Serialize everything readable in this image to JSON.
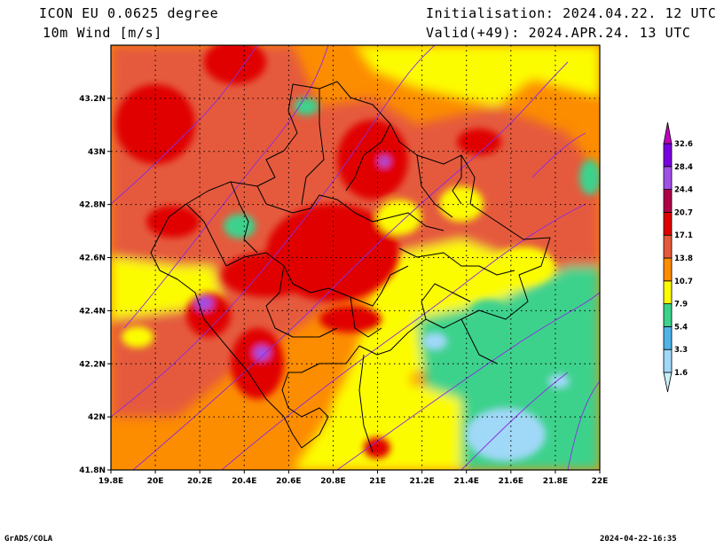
{
  "header": {
    "model": "ICON EU 0.0625 degree",
    "variable": "10m Wind [m/s]",
    "init": "Initialisation: 2024.04.22. 12 UTC",
    "valid": "Valid(+49): 2024.APR.24. 13 UTC"
  },
  "footer": {
    "left": "GrADS/COLA",
    "right": "2024-04-22-16:35"
  },
  "map": {
    "lon_labels": [
      "19.8E",
      "20E",
      "20.2E",
      "20.4E",
      "20.6E",
      "20.8E",
      "21E",
      "21.2E",
      "21.4E",
      "21.6E",
      "21.8E",
      "22E"
    ],
    "lat_labels": [
      "41.8N",
      "42N",
      "42.2N",
      "42.4N",
      "42.6N",
      "42.8N",
      "43N",
      "43.2N"
    ],
    "lon_range": [
      19.8,
      22.0
    ],
    "lat_range": [
      41.8,
      43.4
    ],
    "grid": true
  },
  "colorbar": {
    "levels": [
      "1.6",
      "3.3",
      "5.4",
      "7.9",
      "10.7",
      "13.8",
      "17.1",
      "20.7",
      "24.4",
      "28.4",
      "32.6"
    ],
    "colors": [
      "#c8f0f8",
      "#a0d8f8",
      "#50b4e8",
      "#3cd28c",
      "#fcfc00",
      "#fc8c00",
      "#e55a3c",
      "#e00000",
      "#b00048",
      "#a050e8",
      "#7a00e0",
      "#c000c0"
    ]
  },
  "field_colors": {
    "calm": "#a0d8f8",
    "light": "#3cd28c",
    "moderate": "#fcfc00",
    "fresh": "#fc8c00",
    "strong": "#e55a3c",
    "gale": "#e00000",
    "storm": "#a050e8"
  }
}
